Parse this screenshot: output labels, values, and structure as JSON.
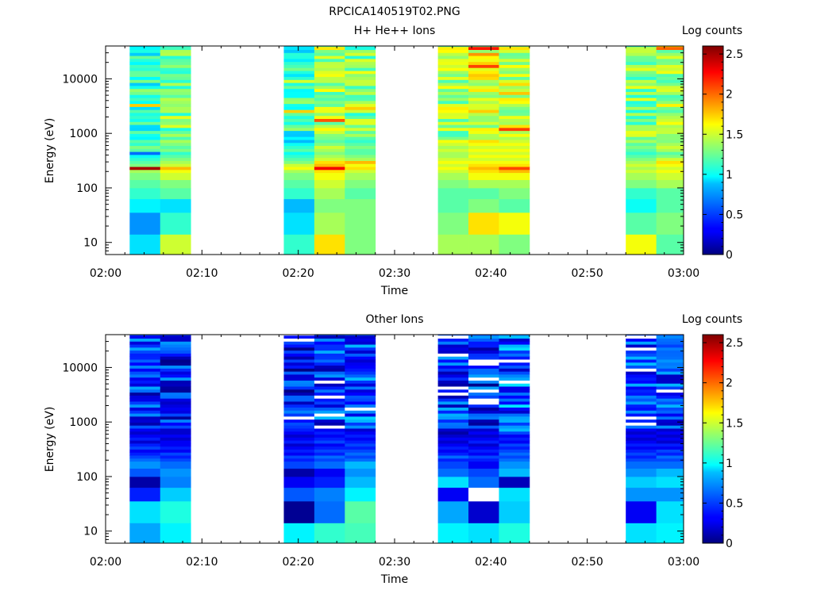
{
  "figure_title": "RPCICA140519T02.PNG",
  "chart_data": [
    {
      "type": "heatmap",
      "title": "H+ He++ Ions",
      "xlabel": "Time",
      "ylabel": "Energy (eV)",
      "colorbar_label": "Log counts",
      "x_ticks": [
        "02:00",
        "02:10",
        "02:20",
        "02:30",
        "02:40",
        "02:50",
        "03:00"
      ],
      "y_ticks": [
        "10",
        "100",
        "1000",
        "10000"
      ],
      "y_scale": "log",
      "ylim_ev": [
        6,
        40000
      ],
      "xlim": [
        "02:00",
        "03:00"
      ],
      "colorbar_ticks": [
        "0",
        "0.5",
        "1",
        "1.5",
        "2",
        "2.5"
      ],
      "colorbar_range": [
        0,
        2.6
      ],
      "colormap": "jet",
      "columns": [
        {
          "start": "02:02:30",
          "end": "02:05:40",
          "base_level": 1.1,
          "profile": [
            0.9,
            0.7,
            0.95,
            1.1,
            1.2,
            1.3,
            1.4,
            2.5,
            1.3,
            1.2,
            1.1,
            1.0,
            0.6,
            1.2,
            1.3,
            1.1,
            1.2
          ]
        },
        {
          "start": "02:05:40",
          "end": "02:08:50",
          "base_level": 1.3,
          "profile": [
            1.5,
            1.1,
            0.9,
            1.2,
            1.3,
            1.5,
            1.6,
            1.8,
            1.5,
            1.4,
            1.3,
            1.2,
            1.1,
            1.3,
            1.2,
            1.3,
            1.4
          ]
        },
        {
          "start": "02:18:30",
          "end": "02:21:40",
          "base_level": 1.1,
          "profile": [
            1.1,
            0.9,
            0.8,
            1.1,
            1.2,
            1.3,
            1.4,
            1.6,
            1.5,
            1.3,
            1.2,
            1.1,
            1.0,
            1.2,
            1.1,
            1.0,
            0.8
          ]
        },
        {
          "start": "02:21:40",
          "end": "02:24:50",
          "base_level": 1.4,
          "profile": [
            1.7,
            1.4,
            1.3,
            1.4,
            1.5,
            1.6,
            1.7,
            2.3,
            1.8,
            1.7,
            1.5,
            1.4,
            1.3,
            1.4,
            1.5,
            1.3,
            1.2
          ]
        },
        {
          "start": "02:24:50",
          "end": "02:28:00",
          "base_level": 1.3,
          "profile": [
            1.3,
            1.3,
            1.3,
            1.2,
            1.3,
            1.4,
            1.5,
            1.7,
            1.6,
            1.8,
            1.4,
            1.3,
            1.2,
            1.2,
            1.3,
            1.2,
            1.1
          ]
        },
        {
          "start": "02:34:30",
          "end": "02:37:40",
          "base_level": 1.4,
          "profile": [
            1.4,
            1.3,
            1.2,
            1.2,
            1.3,
            1.4,
            1.5,
            1.6,
            1.5,
            1.6,
            1.5,
            1.4,
            1.4,
            1.5,
            1.4,
            1.5,
            1.6
          ]
        },
        {
          "start": "02:37:40",
          "end": "02:40:50",
          "base_level": 1.5,
          "profile": [
            1.4,
            1.7,
            1.3,
            1.2,
            1.4,
            1.6,
            1.7,
            1.8,
            1.7,
            1.6,
            1.5,
            1.6,
            1.5,
            1.6,
            1.5,
            1.6,
            1.7
          ]
        },
        {
          "start": "02:40:50",
          "end": "02:44:00",
          "base_level": 1.5,
          "profile": [
            1.3,
            1.6,
            1.2,
            1.3,
            1.4,
            1.6,
            1.8,
            2.1,
            1.7,
            1.6,
            1.5,
            1.6,
            1.5,
            1.6,
            1.5,
            1.6,
            1.5
          ]
        },
        {
          "start": "02:54:00",
          "end": "02:57:10",
          "base_level": 1.3,
          "profile": [
            1.6,
            1.2,
            1.0,
            1.1,
            1.3,
            1.4,
            1.5,
            1.4,
            1.5,
            1.4,
            1.3,
            1.2,
            1.1,
            1.2,
            1.3,
            1.2,
            1.4
          ]
        },
        {
          "start": "02:57:10",
          "end": "03:00:00",
          "base_level": 1.4,
          "profile": [
            1.2,
            1.3,
            1.2,
            1.2,
            1.4,
            1.5,
            1.6,
            1.5,
            1.6,
            1.7,
            1.5,
            1.3,
            1.2,
            1.4,
            1.5,
            1.4,
            1.3
          ]
        }
      ]
    },
    {
      "type": "heatmap",
      "title": "Other Ions",
      "xlabel": "Time",
      "ylabel": "Energy (eV)",
      "colorbar_label": "Log counts",
      "x_ticks": [
        "02:00",
        "02:10",
        "02:20",
        "02:30",
        "02:40",
        "02:50",
        "03:00"
      ],
      "y_ticks": [
        "10",
        "100",
        "1000",
        "10000"
      ],
      "y_scale": "log",
      "ylim_ev": [
        6,
        40000
      ],
      "xlim": [
        "02:00",
        "03:00"
      ],
      "colorbar_ticks": [
        "0",
        "0.5",
        "1",
        "1.5",
        "2",
        "2.5"
      ],
      "colorbar_range": [
        0,
        2.6
      ],
      "colormap": "jet",
      "columns": [
        {
          "start": "02:02:30",
          "end": "02:05:40",
          "base_level": 0.45,
          "profile": [
            0.75,
            0.9,
            0.4,
            0.1,
            0.55,
            0.7,
            0.6,
            0.5,
            0.4,
            0.3,
            0.5,
            0.4,
            0.2,
            0.4,
            0.3,
            0.2,
            0.3
          ]
        },
        {
          "start": "02:05:40",
          "end": "02:08:50",
          "base_level": 0.4,
          "profile": [
            0.95,
            1.05,
            0.85,
            0.65,
            0.7,
            0.6,
            0.5,
            0.4,
            0.5,
            0.3,
            0.4,
            0.3,
            0.3,
            0.2,
            0.3,
            0.2,
            0.2
          ]
        },
        {
          "start": "02:18:30",
          "end": "02:21:40",
          "base_level": 0.35,
          "profile": [
            0.95,
            0.05,
            0.55,
            0.3,
            0.1,
            0.5,
            0.4,
            0.5,
            0.3,
            0.4,
            0.3,
            0.2,
            0.4,
            0.3,
            0.2,
            0.3,
            0.4
          ]
        },
        {
          "start": "02:21:40",
          "end": "02:24:50",
          "base_level": 0.45,
          "profile": [
            1.1,
            0.6,
            0.65,
            0.4,
            0.3,
            0.6,
            0.5,
            0.6,
            0.4,
            0.5,
            0.4,
            0.3,
            0.5,
            0.4,
            0.3,
            0.4,
            0.3
          ]
        },
        {
          "start": "02:24:50",
          "end": "02:28:00",
          "base_level": 0.55,
          "profile": [
            1.15,
            1.2,
            0.95,
            0.8,
            0.7,
            0.8,
            0.6,
            0.5,
            0.6,
            0.5,
            0.4,
            0.5,
            0.4,
            0.3,
            0.4,
            0.3,
            0.2
          ]
        },
        {
          "start": "02:34:30",
          "end": "02:37:40",
          "base_level": 0.45,
          "profile": [
            0.95,
            0.75,
            0.3,
            0.9,
            0.6,
            0.5,
            0.4,
            0.6,
            0.4,
            0.3,
            0.4,
            0.3,
            0.2,
            0.3,
            0.2,
            0.1,
            0.2
          ]
        },
        {
          "start": "02:37:40",
          "end": "02:40:50",
          "base_level": 0.4,
          "profile": [
            0.9,
            0.2,
            -1,
            0.6,
            0.5,
            0.3,
            0.4,
            0.5,
            0.3,
            0.4,
            0.3,
            0.2,
            0.4,
            0.3,
            0.2,
            0.3,
            0.2
          ]
        },
        {
          "start": "02:40:50",
          "end": "02:44:00",
          "base_level": 0.55,
          "profile": [
            1.05,
            0.85,
            0.9,
            0.15,
            0.8,
            0.7,
            0.6,
            0.5,
            0.6,
            0.5,
            0.4,
            0.5,
            0.3,
            0.4,
            0.3,
            0.5,
            0.8
          ]
        },
        {
          "start": "02:54:00",
          "end": "02:57:10",
          "base_level": 0.45,
          "profile": [
            0.9,
            0.3,
            0.7,
            0.85,
            0.7,
            0.6,
            0.5,
            0.4,
            0.5,
            0.4,
            0.3,
            0.4,
            0.3,
            0.2,
            0.3,
            0.2,
            0.3
          ]
        },
        {
          "start": "02:57:10",
          "end": "03:00:00",
          "base_level": 0.5,
          "profile": [
            0.95,
            0.9,
            0.7,
            0.9,
            0.8,
            0.6,
            0.5,
            0.6,
            0.4,
            0.5,
            0.3,
            0.4,
            0.2,
            0.3,
            0.2,
            0.3,
            0.2
          ]
        }
      ]
    }
  ]
}
